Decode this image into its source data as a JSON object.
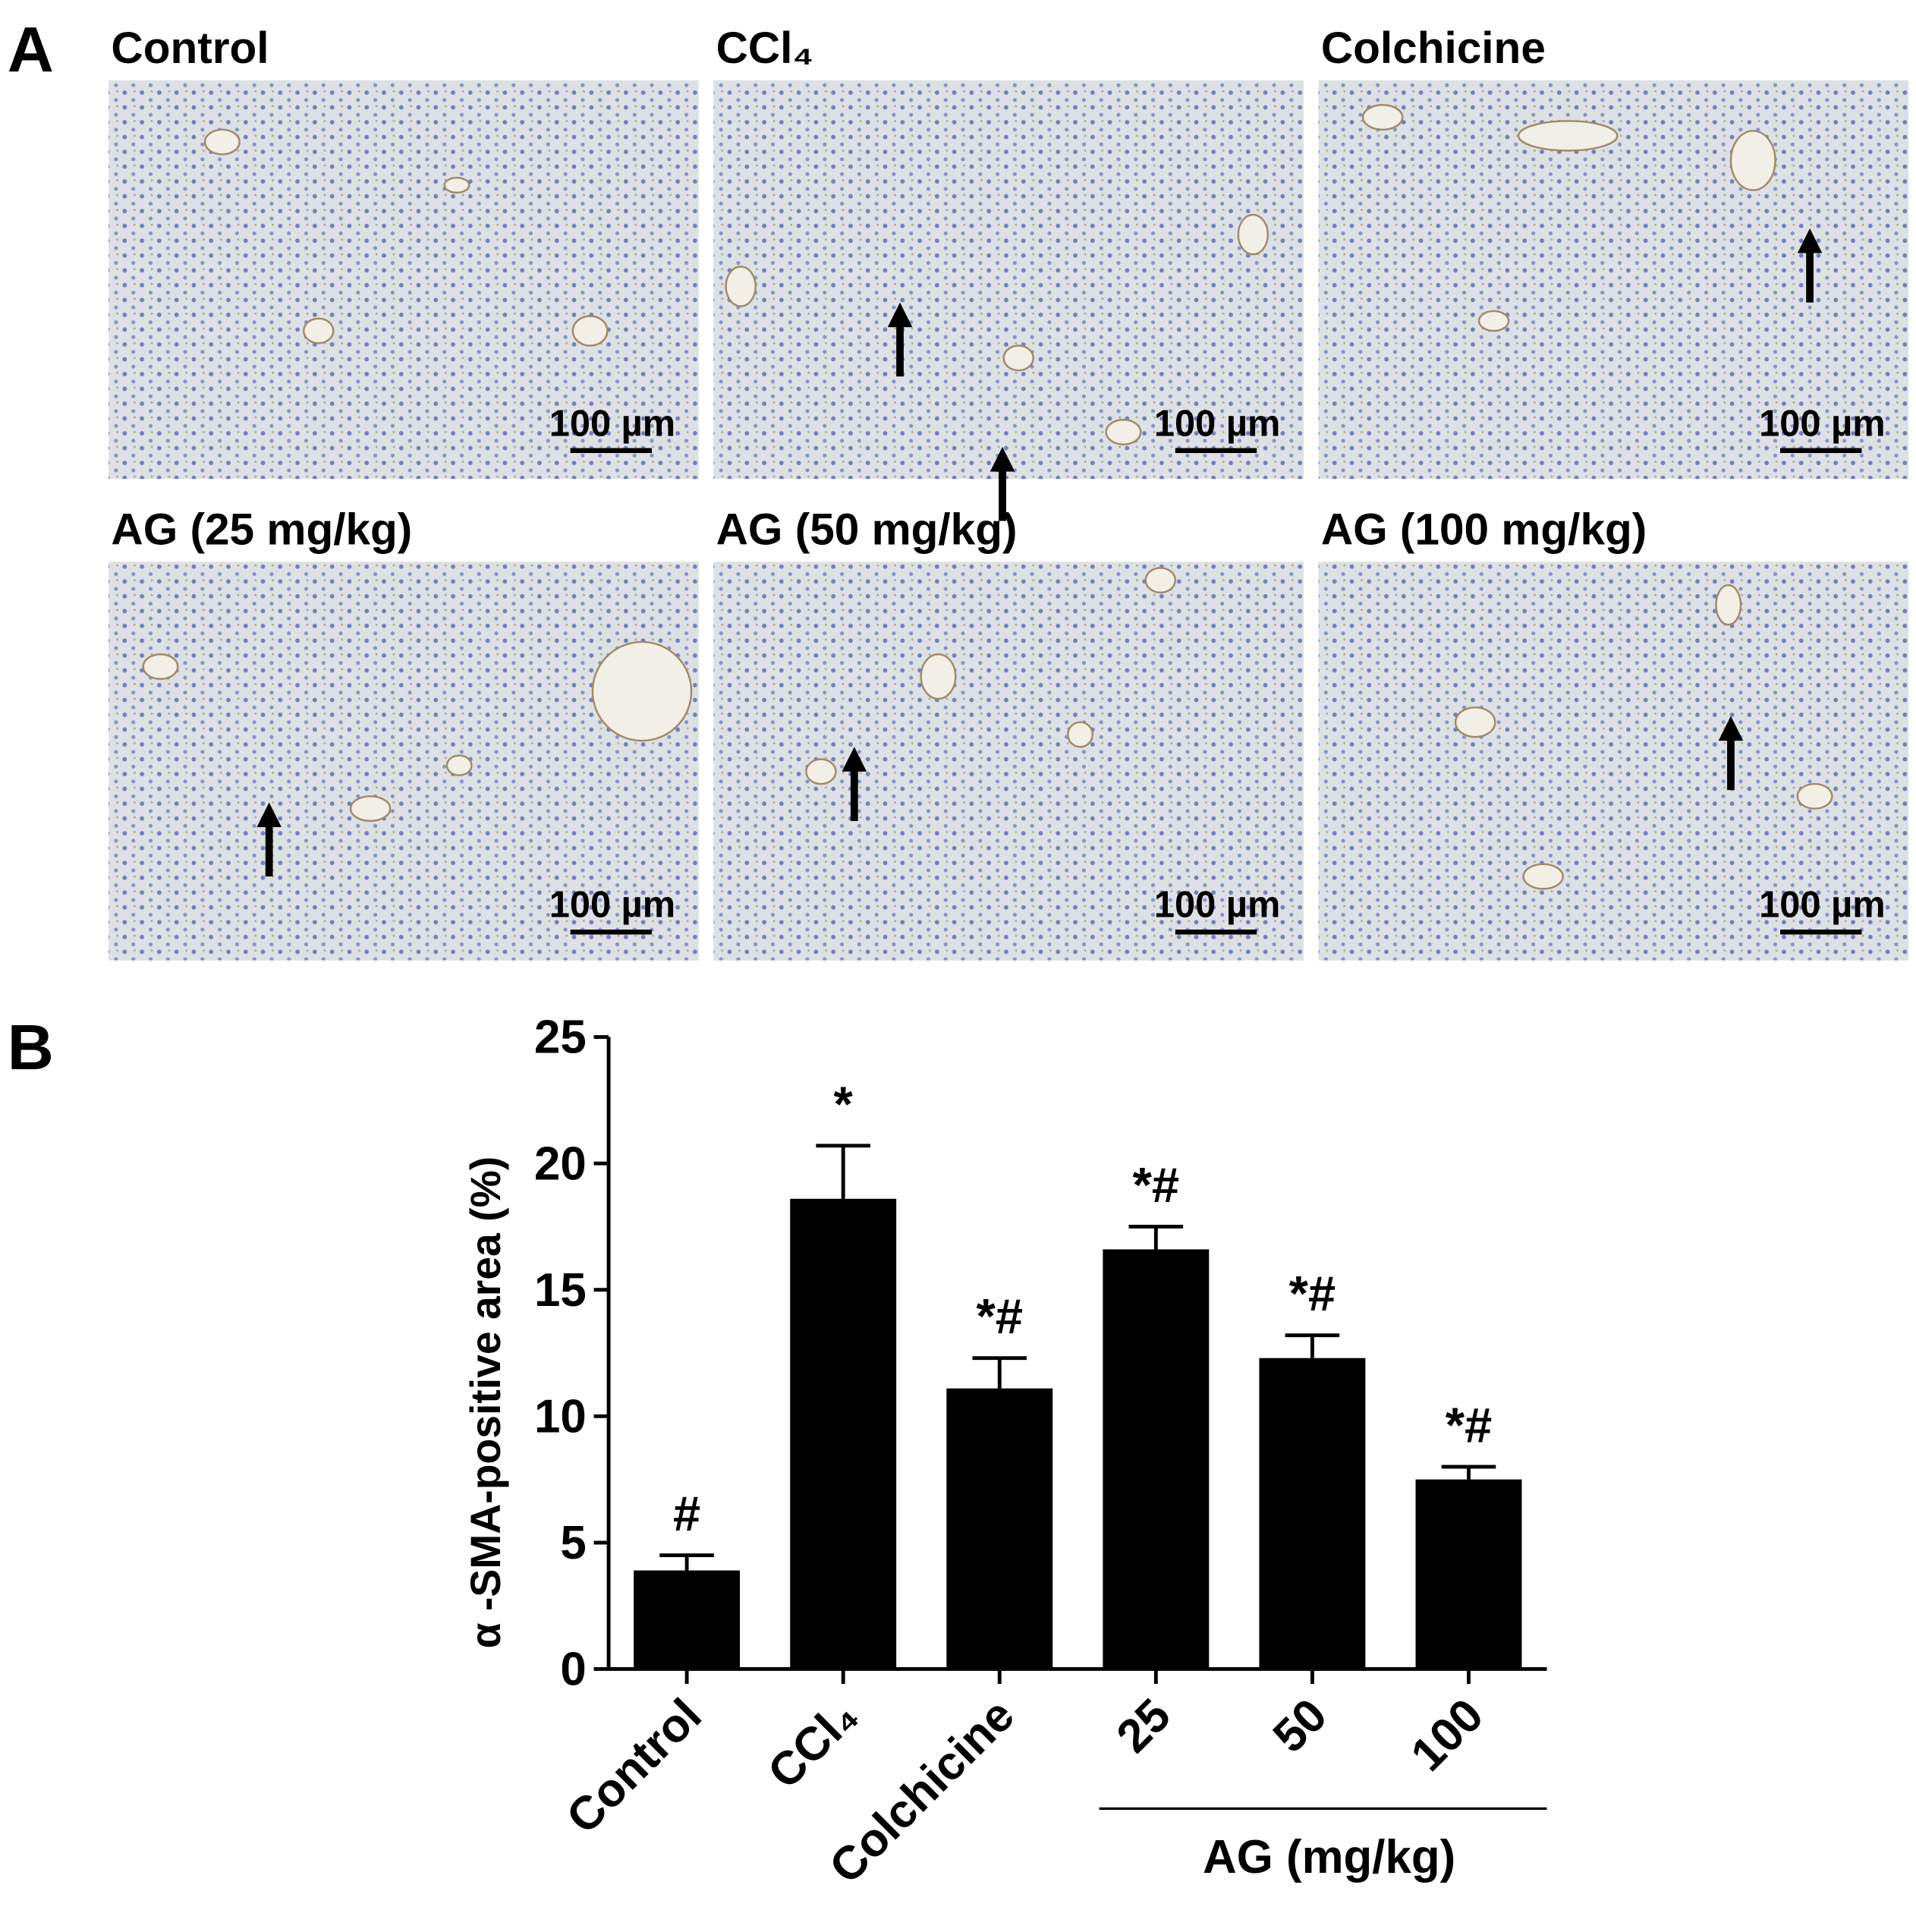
{
  "panel_a": {
    "label": "A",
    "images": [
      {
        "title": "Control",
        "scale_bar": "100 µm"
      },
      {
        "title": "CCl₄",
        "scale_bar": "100 µm"
      },
      {
        "title": "Colchicine",
        "scale_bar": "100 µm"
      },
      {
        "title": "AG (25 mg/kg)",
        "scale_bar": "100 µm"
      },
      {
        "title": "AG (50 mg/kg)",
        "scale_bar": "100 µm"
      },
      {
        "title": "AG (100 mg/kg)",
        "scale_bar": "100 µm"
      }
    ]
  },
  "panel_b_label": "B",
  "chart_data": {
    "type": "bar",
    "ylabel": "α -SMA-positive area (%)",
    "categories": [
      "Control",
      "CCl₄",
      "Colchicine",
      "25",
      "50",
      "100"
    ],
    "values": [
      3.9,
      18.6,
      11.1,
      16.6,
      12.3,
      7.5
    ],
    "errors": [
      0.6,
      2.1,
      1.2,
      0.9,
      0.9,
      0.5
    ],
    "annotations": [
      "#",
      "*",
      "*#",
      "*#",
      "*#",
      "*#"
    ],
    "group_label": "AG (mg/kg)",
    "color": "#000000",
    "ylim": [
      0,
      25
    ],
    "yticks": [
      0,
      5,
      10,
      15,
      20,
      25
    ]
  }
}
